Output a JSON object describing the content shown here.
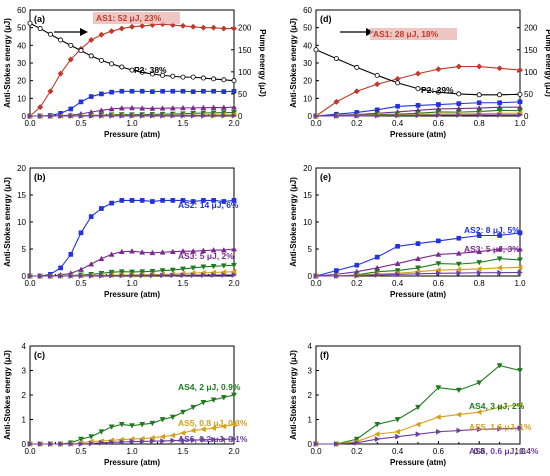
{
  "chart_data": [
    {
      "panel": "(a)",
      "type": "line",
      "xlabel": "Pressure (atm)",
      "ylabel": "Anti-Stokes energy (μJ)",
      "ylabel_right": "Pump energy (μJ)",
      "xlim": [
        0,
        2.0
      ],
      "ylim": [
        0,
        60
      ],
      "ylim_right": [
        0,
        240
      ],
      "xticks": [
        "0.0",
        "0.5",
        "1.0",
        "1.5",
        "2.0"
      ],
      "yticks": [
        "0",
        "10",
        "20",
        "30",
        "40",
        "50",
        "60"
      ],
      "yticks_right": [
        "0",
        "50",
        "100",
        "150",
        "200"
      ],
      "annotations": [
        {
          "text": "AS1: 52 μJ, 23%",
          "color": "#c0392b"
        },
        {
          "text": "P2: 38%",
          "color": "#000000"
        }
      ],
      "x": [
        0.0,
        0.1,
        0.2,
        0.3,
        0.4,
        0.5,
        0.6,
        0.7,
        0.8,
        0.9,
        1.0,
        1.1,
        1.2,
        1.3,
        1.4,
        1.5,
        1.6,
        1.7,
        1.8,
        1.9,
        2.0
      ],
      "series": [
        {
          "name": "AS1",
          "color": "#c0392b",
          "marker": "diamond",
          "values": [
            0,
            5,
            14,
            24,
            32,
            38,
            43,
            46,
            48,
            49.5,
            50.5,
            51,
            51.5,
            52,
            51.5,
            51,
            50.5,
            50,
            50,
            49.5,
            49.5
          ]
        },
        {
          "name": "AS2",
          "color": "#2233dd",
          "marker": "square",
          "values": [
            0,
            0,
            0.3,
            1.5,
            4,
            8,
            11,
            12.5,
            13.5,
            14,
            14,
            14,
            13.8,
            14,
            14,
            14,
            13.8,
            14,
            14,
            13.8,
            14
          ]
        },
        {
          "name": "AS3",
          "color": "#7a2a8f",
          "marker": "triangle",
          "values": [
            0,
            0,
            0,
            0.2,
            0.5,
            1.2,
            2.2,
            3.2,
            4,
            4.5,
            4.6,
            4.4,
            4.3,
            4.4,
            4.5,
            4.6,
            4.6,
            4.7,
            4.8,
            4.8,
            5
          ]
        },
        {
          "name": "AS4",
          "color": "#1e7a1e",
          "marker": "triangle-down",
          "values": [
            0,
            0,
            0,
            0,
            0.05,
            0.2,
            0.3,
            0.5,
            0.7,
            0.8,
            0.75,
            0.8,
            0.85,
            1.0,
            1.1,
            1.3,
            1.5,
            1.7,
            1.8,
            1.9,
            2
          ]
        },
        {
          "name": "AS5",
          "color": "#d4a017",
          "marker": "triangle-left",
          "values": [
            0,
            0,
            0,
            0,
            0,
            0.05,
            0.1,
            0.12,
            0.15,
            0.18,
            0.2,
            0.22,
            0.25,
            0.3,
            0.35,
            0.45,
            0.55,
            0.6,
            0.65,
            0.72,
            0.8
          ]
        },
        {
          "name": "AS6",
          "color": "#6b3fa0",
          "marker": "triangle-right",
          "values": [
            0,
            0,
            0,
            0,
            0,
            0,
            0.02,
            0.05,
            0.07,
            0.08,
            0.1,
            0.1,
            0.12,
            0.12,
            0.14,
            0.15,
            0.16,
            0.17,
            0.18,
            0.19,
            0.2
          ]
        },
        {
          "name": "P2",
          "color": "#000000",
          "marker": "open-circle",
          "axis": "right",
          "values": [
            210,
            198,
            185,
            172,
            160,
            148,
            136,
            126,
            118,
            111,
            104,
            99,
            95,
            92,
            90,
            88,
            88,
            86,
            84,
            82,
            80
          ]
        }
      ]
    },
    {
      "panel": "(d)",
      "type": "line",
      "xlabel": "Pressure (atm)",
      "ylabel": "Anti-Stokes energy (μJ)",
      "ylabel_right": "Pump energy (μJ)",
      "xlim": [
        0,
        1.0
      ],
      "ylim": [
        0,
        60
      ],
      "ylim_right": [
        0,
        240
      ],
      "xticks": [
        "0.0",
        "0.2",
        "0.4",
        "0.6",
        "0.8",
        "1.0"
      ],
      "yticks": [
        "0",
        "10",
        "20",
        "30",
        "40",
        "50",
        "60"
      ],
      "yticks_right": [
        "0",
        "50",
        "100",
        "150",
        "200"
      ],
      "annotations": [
        {
          "text": "AS1: 28 μJ, 18%",
          "color": "#c0392b"
        },
        {
          "text": "P2: 29%",
          "color": "#000000"
        }
      ],
      "x": [
        0.0,
        0.1,
        0.2,
        0.3,
        0.4,
        0.5,
        0.6,
        0.7,
        0.8,
        0.9,
        1.0
      ],
      "series": [
        {
          "name": "AS1",
          "color": "#c0392b",
          "marker": "diamond",
          "values": [
            0,
            8,
            14,
            18,
            21,
            24,
            26.5,
            28,
            28,
            27,
            26
          ]
        },
        {
          "name": "AS2",
          "color": "#2233dd",
          "marker": "square",
          "values": [
            0,
            1,
            2,
            3.5,
            5.5,
            6,
            6.5,
            7,
            7.5,
            7.5,
            8
          ]
        },
        {
          "name": "AS3",
          "color": "#7a2a8f",
          "marker": "triangle",
          "values": [
            0,
            0.3,
            0.8,
            1.5,
            2.3,
            3.2,
            4,
            4.2,
            4.5,
            5,
            5
          ]
        },
        {
          "name": "AS4",
          "color": "#1e7a1e",
          "marker": "triangle-down",
          "values": [
            0,
            0,
            0.2,
            0.8,
            1,
            1.5,
            2.3,
            2.2,
            2.5,
            3.2,
            3
          ]
        },
        {
          "name": "AS5",
          "color": "#d4a017",
          "marker": "triangle-left",
          "values": [
            0,
            0,
            0.1,
            0.4,
            0.5,
            0.8,
            1.1,
            1.2,
            1.3,
            1.5,
            1.6
          ]
        },
        {
          "name": "AS6",
          "color": "#6b3fa0",
          "marker": "triangle-right",
          "values": [
            0,
            0,
            0.05,
            0.2,
            0.3,
            0.4,
            0.5,
            0.55,
            0.6,
            0.62,
            0.65
          ]
        },
        {
          "name": "P2",
          "color": "#000000",
          "marker": "open-circle",
          "axis": "right",
          "values": [
            150,
            130,
            110,
            92,
            75,
            62,
            54,
            50,
            48,
            48,
            49
          ]
        }
      ]
    },
    {
      "panel": "(b)",
      "type": "line",
      "xlabel": "Pressure (atm)",
      "ylabel": "Anti-Stokes energy (μJ)",
      "xlim": [
        0,
        2.0
      ],
      "ylim": [
        0,
        20
      ],
      "xticks": [
        "0.0",
        "0.5",
        "1.0",
        "1.5",
        "2.0"
      ],
      "yticks": [
        "0",
        "5",
        "10",
        "15",
        "20"
      ],
      "annotations": [
        {
          "text": "AS2: 14 μJ, 6%",
          "color": "#2233dd"
        },
        {
          "text": "AS3: 5 μJ, 2%",
          "color": "#7a2a8f"
        }
      ],
      "x": [
        0.0,
        0.1,
        0.2,
        0.3,
        0.4,
        0.5,
        0.6,
        0.7,
        0.8,
        0.9,
        1.0,
        1.1,
        1.2,
        1.3,
        1.4,
        1.5,
        1.6,
        1.7,
        1.8,
        1.9,
        2.0
      ],
      "series": [
        {
          "name": "AS2",
          "color": "#2233dd",
          "marker": "square",
          "values": [
            0,
            0,
            0.3,
            1.5,
            4,
            8,
            11,
            12.5,
            13.5,
            14,
            14,
            14,
            13.8,
            14,
            14,
            14,
            13.8,
            14,
            14,
            13.8,
            14
          ]
        },
        {
          "name": "AS3",
          "color": "#7a2a8f",
          "marker": "triangle",
          "values": [
            0,
            0,
            0,
            0.2,
            0.5,
            1.2,
            2.2,
            3.2,
            4,
            4.5,
            4.6,
            4.4,
            4.3,
            4.4,
            4.5,
            4.6,
            4.6,
            4.7,
            4.8,
            4.8,
            5
          ]
        },
        {
          "name": "AS4",
          "color": "#1e7a1e",
          "marker": "triangle-down",
          "values": [
            0,
            0,
            0,
            0,
            0.05,
            0.2,
            0.3,
            0.5,
            0.7,
            0.8,
            0.75,
            0.8,
            0.85,
            1.0,
            1.1,
            1.3,
            1.5,
            1.7,
            1.8,
            1.9,
            2
          ]
        },
        {
          "name": "AS5",
          "color": "#d4a017",
          "marker": "triangle-left",
          "values": [
            0,
            0,
            0,
            0,
            0,
            0.05,
            0.1,
            0.12,
            0.15,
            0.18,
            0.2,
            0.22,
            0.25,
            0.3,
            0.35,
            0.45,
            0.55,
            0.6,
            0.65,
            0.72,
            0.8
          ]
        },
        {
          "name": "AS6",
          "color": "#6b3fa0",
          "marker": "triangle-right",
          "values": [
            0,
            0,
            0,
            0,
            0,
            0,
            0.02,
            0.05,
            0.07,
            0.08,
            0.1,
            0.1,
            0.12,
            0.12,
            0.14,
            0.15,
            0.16,
            0.17,
            0.18,
            0.19,
            0.2
          ]
        }
      ]
    },
    {
      "panel": "(e)",
      "type": "line",
      "xlabel": "Pressure (atm)",
      "ylabel": "Anti-Stokes energy (μJ)",
      "xlim": [
        0,
        1.0
      ],
      "ylim": [
        0,
        20
      ],
      "xticks": [
        "0.0",
        "0.2",
        "0.4",
        "0.6",
        "0.8",
        "1.0"
      ],
      "yticks": [
        "0",
        "5",
        "10",
        "15",
        "20"
      ],
      "annotations": [
        {
          "text": "AS2: 8 μJ, 5%",
          "color": "#2233dd"
        },
        {
          "text": "AS3: 5 μJ, 3%",
          "color": "#7a2a8f"
        }
      ],
      "x": [
        0.0,
        0.1,
        0.2,
        0.3,
        0.4,
        0.5,
        0.6,
        0.7,
        0.8,
        0.9,
        1.0
      ],
      "series": [
        {
          "name": "AS2",
          "color": "#2233dd",
          "marker": "square",
          "values": [
            0,
            1,
            2,
            3.5,
            5.5,
            6,
            6.5,
            7,
            7.5,
            7.5,
            8
          ]
        },
        {
          "name": "AS3",
          "color": "#7a2a8f",
          "marker": "triangle",
          "values": [
            0,
            0.3,
            0.8,
            1.5,
            2.3,
            3.2,
            4,
            4.2,
            4.5,
            5,
            5
          ]
        },
        {
          "name": "AS4",
          "color": "#1e7a1e",
          "marker": "triangle-down",
          "values": [
            0,
            0,
            0.2,
            0.8,
            1,
            1.5,
            2.3,
            2.2,
            2.5,
            3.2,
            3
          ]
        },
        {
          "name": "AS5",
          "color": "#d4a017",
          "marker": "triangle-left",
          "values": [
            0,
            0,
            0.1,
            0.4,
            0.5,
            0.8,
            1.1,
            1.2,
            1.3,
            1.5,
            1.6
          ]
        },
        {
          "name": "AS6",
          "color": "#6b3fa0",
          "marker": "triangle-right",
          "values": [
            0,
            0,
            0.05,
            0.2,
            0.3,
            0.4,
            0.5,
            0.55,
            0.6,
            0.62,
            0.65
          ]
        }
      ]
    },
    {
      "panel": "(c)",
      "type": "line",
      "xlabel": "Pressure (atm)",
      "ylabel": "Anti-Stokes energy (μJ)",
      "xlim": [
        0,
        2.0
      ],
      "ylim": [
        0,
        4
      ],
      "xticks": [
        "0.0",
        "0.5",
        "1.0",
        "1.5",
        "2.0"
      ],
      "yticks": [
        "0",
        "1",
        "2",
        "3",
        "4"
      ],
      "annotations": [
        {
          "text": "AS4, 2 μJ, 0.9%",
          "color": "#1e7a1e"
        },
        {
          "text": "AS5, 0.8 μJ, 0.3%",
          "color": "#d4a017"
        },
        {
          "text": "AS6, 0.2 μJ, 0.1%",
          "color": "#6b3fa0"
        }
      ],
      "x": [
        0.0,
        0.1,
        0.2,
        0.3,
        0.4,
        0.5,
        0.6,
        0.7,
        0.8,
        0.9,
        1.0,
        1.1,
        1.2,
        1.3,
        1.4,
        1.5,
        1.6,
        1.7,
        1.8,
        1.9,
        2.0
      ],
      "series": [
        {
          "name": "AS4",
          "color": "#1e7a1e",
          "marker": "triangle-down",
          "values": [
            0,
            0,
            0,
            0,
            0.05,
            0.2,
            0.3,
            0.5,
            0.7,
            0.8,
            0.75,
            0.8,
            0.85,
            1.0,
            1.1,
            1.3,
            1.5,
            1.7,
            1.8,
            1.9,
            2
          ]
        },
        {
          "name": "AS5",
          "color": "#d4a017",
          "marker": "triangle-left",
          "values": [
            0,
            0,
            0,
            0,
            0,
            0.05,
            0.1,
            0.12,
            0.15,
            0.18,
            0.2,
            0.22,
            0.25,
            0.3,
            0.35,
            0.45,
            0.55,
            0.6,
            0.65,
            0.72,
            0.8
          ]
        },
        {
          "name": "AS6",
          "color": "#6b3fa0",
          "marker": "triangle-right",
          "values": [
            0,
            0,
            0,
            0,
            0,
            0,
            0.02,
            0.05,
            0.07,
            0.08,
            0.1,
            0.1,
            0.12,
            0.12,
            0.14,
            0.15,
            0.16,
            0.17,
            0.18,
            0.19,
            0.2
          ]
        }
      ]
    },
    {
      "panel": "(f)",
      "type": "line",
      "xlabel": "Pressure (atm)",
      "ylabel": "Anti-Stokes energy (μJ)",
      "xlim": [
        0,
        1.0
      ],
      "ylim": [
        0,
        4
      ],
      "xticks": [
        "0.0",
        "0.2",
        "0.4",
        "0.6",
        "0.8",
        "1.0"
      ],
      "yticks": [
        "0",
        "1",
        "2",
        "3",
        "4"
      ],
      "annotations": [
        {
          "text": "AS4, 3 μJ, 2%",
          "color": "#1e7a1e"
        },
        {
          "text": "AS5, 1.6 μJ, 1%",
          "color": "#d4a017"
        },
        {
          "text": "AS6, 0.6 μJ, 0.4%",
          "color": "#6b3fa0"
        }
      ],
      "x": [
        0.0,
        0.1,
        0.2,
        0.3,
        0.4,
        0.5,
        0.6,
        0.7,
        0.8,
        0.9,
        1.0
      ],
      "series": [
        {
          "name": "AS4",
          "color": "#1e7a1e",
          "marker": "triangle-down",
          "values": [
            0,
            0,
            0.2,
            0.8,
            1,
            1.5,
            2.3,
            2.2,
            2.5,
            3.2,
            3
          ]
        },
        {
          "name": "AS5",
          "color": "#d4a017",
          "marker": "triangle-left",
          "values": [
            0,
            0,
            0.1,
            0.4,
            0.5,
            0.8,
            1.1,
            1.2,
            1.3,
            1.5,
            1.6
          ]
        },
        {
          "name": "AS6",
          "color": "#6b3fa0",
          "marker": "triangle-right",
          "values": [
            0,
            0,
            0.05,
            0.2,
            0.3,
            0.4,
            0.5,
            0.55,
            0.6,
            0.62,
            0.65
          ]
        }
      ]
    }
  ]
}
